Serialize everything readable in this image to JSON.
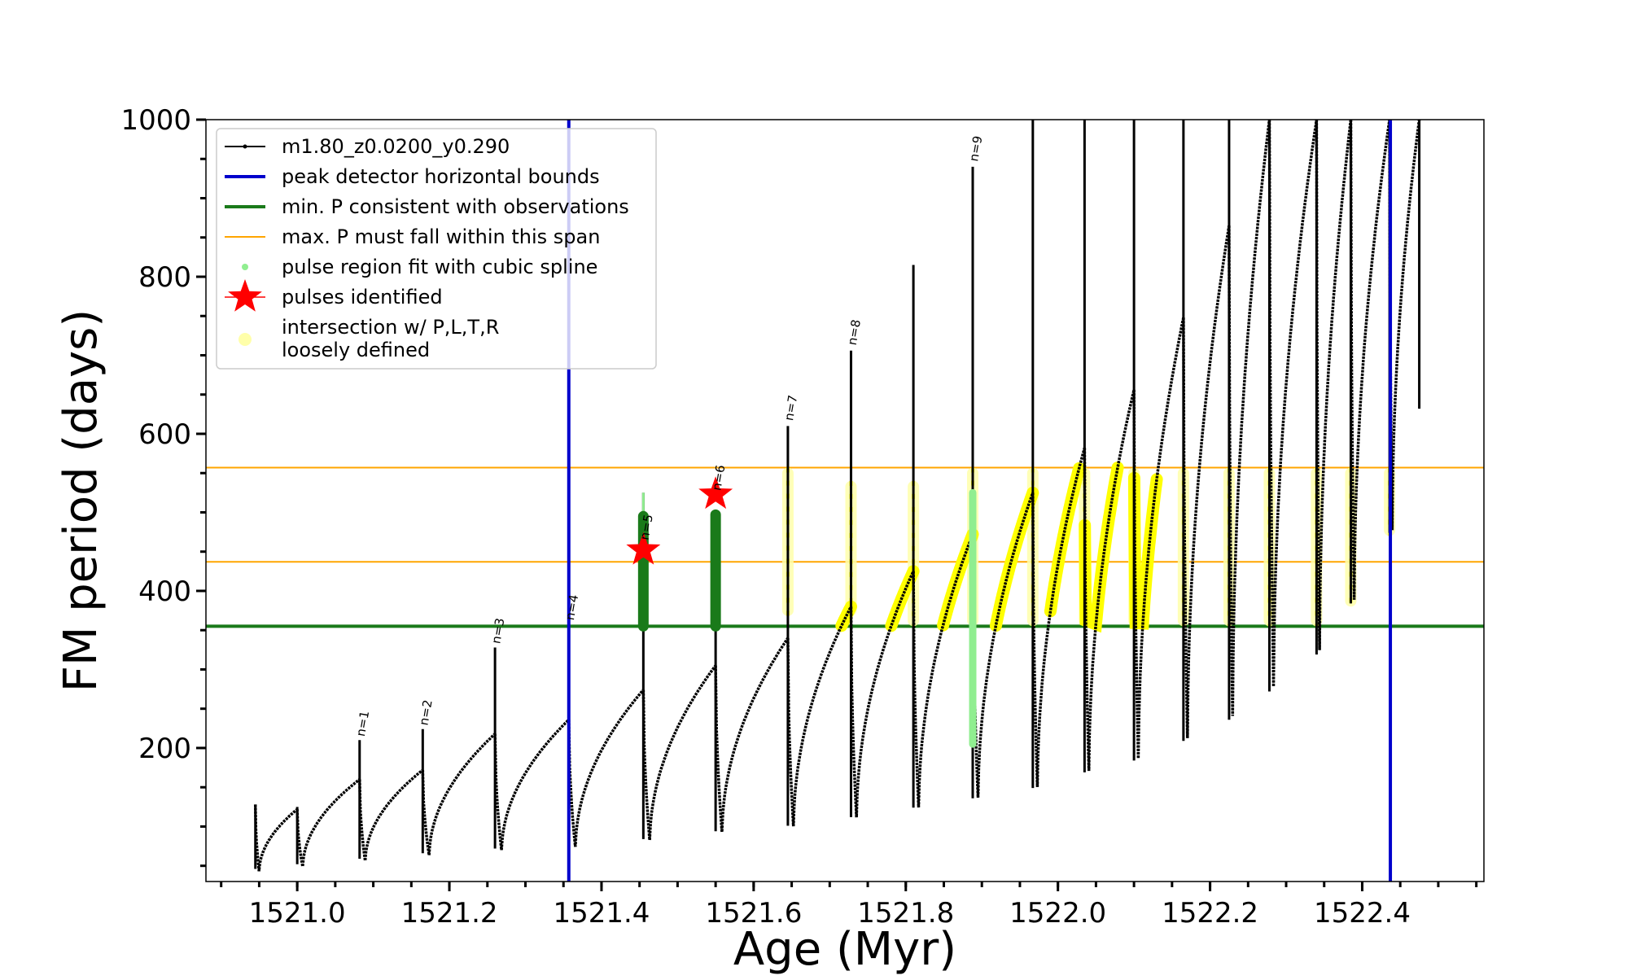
{
  "chart_data": {
    "type": "line",
    "xlabel": "Age (Myr)",
    "ylabel": "FM period (days)",
    "xlim": [
      1520.88,
      1522.56
    ],
    "ylim": [
      30,
      1000
    ],
    "x_ticks": [
      {
        "value": 1521.0,
        "label": "1521.0"
      },
      {
        "value": 1521.2,
        "label": "1521.2"
      },
      {
        "value": 1521.4,
        "label": "1521.4"
      },
      {
        "value": 1521.6,
        "label": "1521.6"
      },
      {
        "value": 1521.8,
        "label": "1521.8"
      },
      {
        "value": 1522.0,
        "label": "1522.0"
      },
      {
        "value": 1522.2,
        "label": "1522.2"
      },
      {
        "value": 1522.4,
        "label": "1522.4"
      }
    ],
    "y_ticks": [
      {
        "value": 200,
        "label": "200"
      },
      {
        "value": 400,
        "label": "400"
      },
      {
        "value": 600,
        "label": "600"
      },
      {
        "value": 800,
        "label": "800"
      },
      {
        "value": 1000,
        "label": "1000"
      }
    ],
    "legend": {
      "position": "top-left",
      "entries": [
        {
          "label": "m1.80_z0.0200_y0.290",
          "marker": "line-dot",
          "color": "#000000"
        },
        {
          "label": "peak detector horizontal bounds",
          "marker": "line",
          "color": "#0000cc"
        },
        {
          "label": "min. P consistent with observations",
          "marker": "line",
          "color": "#1a7a1a"
        },
        {
          "label": "max. P must fall within this span",
          "marker": "thin-line",
          "color": "#ffa500"
        },
        {
          "label": "pulse region fit with cubic spline",
          "marker": "dot",
          "color": "#90ee90"
        },
        {
          "label": "pulses identified",
          "marker": "star",
          "color": "#ff0000"
        },
        {
          "label": "intersection w/ P,L,T,R",
          "label2": "loosely defined",
          "marker": "circle",
          "color": "#ffffaa"
        }
      ]
    },
    "vertical_lines": [
      {
        "name": "peak detector horizontal bounds",
        "x": 1521.357,
        "color": "#0000cc"
      },
      {
        "name": "peak detector horizontal bounds",
        "x": 1522.437,
        "color": "#0000cc"
      }
    ],
    "horizontal_lines": [
      {
        "name": "min. P consistent with observations",
        "y": 355,
        "color": "#1a7a1a"
      },
      {
        "name": "max. P must fall within this span",
        "y": 437,
        "color": "#ffa500"
      },
      {
        "name": "max. P must fall within this span",
        "y": 557,
        "color": "#ffa500"
      }
    ],
    "cycles": [
      {
        "start": 1520.945,
        "end": 1521.0,
        "p_start": 128,
        "p_min": 42,
        "p_end": 122,
        "spike": 128
      },
      {
        "start": 1521.0,
        "end": 1521.082,
        "p_start": 122,
        "p_min": 48,
        "p_end": 160,
        "spike": 125
      },
      {
        "start": 1521.082,
        "end": 1521.165,
        "p_start": 160,
        "p_min": 55,
        "p_end": 172,
        "spike": 210
      },
      {
        "start": 1521.165,
        "end": 1521.26,
        "p_start": 172,
        "p_min": 62,
        "p_end": 218,
        "spike": 224
      },
      {
        "start": 1521.26,
        "end": 1521.357,
        "p_start": 218,
        "p_min": 68,
        "p_end": 236,
        "spike": 328
      },
      {
        "start": 1521.357,
        "end": 1521.455,
        "p_start": 236,
        "p_min": 72,
        "p_end": 274,
        "spike": 240
      },
      {
        "start": 1521.455,
        "end": 1521.55,
        "p_start": 274,
        "p_min": 80,
        "p_end": 305,
        "spike": 525
      },
      {
        "start": 1521.55,
        "end": 1521.645,
        "p_start": 305,
        "p_min": 90,
        "p_end": 340,
        "spike": 500
      },
      {
        "start": 1521.645,
        "end": 1521.728,
        "p_start": 340,
        "p_min": 97,
        "p_end": 380,
        "spike": 610
      },
      {
        "start": 1521.728,
        "end": 1521.81,
        "p_start": 380,
        "p_min": 108,
        "p_end": 425,
        "spike": 706
      },
      {
        "start": 1521.81,
        "end": 1521.888,
        "p_start": 425,
        "p_min": 120,
        "p_end": 472,
        "spike": 815
      },
      {
        "start": 1521.888,
        "end": 1521.967,
        "p_start": 472,
        "p_min": 132,
        "p_end": 525,
        "spike": 940
      },
      {
        "start": 1521.967,
        "end": 1522.035,
        "p_start": 525,
        "p_min": 145,
        "p_end": 582,
        "spike": 1000
      },
      {
        "start": 1522.035,
        "end": 1522.1,
        "p_start": 582,
        "p_min": 165,
        "p_end": 656,
        "spike": 1000
      },
      {
        "start": 1522.1,
        "end": 1522.165,
        "p_start": 656,
        "p_min": 180,
        "p_end": 748,
        "spike": 1000
      },
      {
        "start": 1522.165,
        "end": 1522.225,
        "p_start": 748,
        "p_min": 205,
        "p_end": 865,
        "spike": 1000
      },
      {
        "start": 1522.225,
        "end": 1522.278,
        "p_start": 865,
        "p_min": 232,
        "p_end": 1000,
        "spike": 1000
      },
      {
        "start": 1522.278,
        "end": 1522.34,
        "p_start": 1000,
        "p_min": 268,
        "p_end": 1000,
        "spike": 1000
      },
      {
        "start": 1522.34,
        "end": 1522.385,
        "p_start": 1000,
        "p_min": 315,
        "p_end": 1000,
        "spike": 1000
      },
      {
        "start": 1522.385,
        "end": 1522.436,
        "p_start": 1000,
        "p_min": 380,
        "p_end": 1000,
        "spike": 1000
      },
      {
        "start": 1522.436,
        "end": 1522.475,
        "p_start": 1000,
        "p_min": 470,
        "p_end": 1000,
        "spike": 1000
      }
    ],
    "tail": {
      "x": 1522.475,
      "p_start": 1000,
      "p_end": 632
    },
    "pulse_labels": [
      {
        "label": "n=1",
        "x": 1521.082,
        "y": 212
      },
      {
        "label": "n=2",
        "x": 1521.165,
        "y": 226
      },
      {
        "label": "n=3",
        "x": 1521.26,
        "y": 330
      },
      {
        "label": "n=4",
        "x": 1521.357,
        "y": 360
      },
      {
        "label": "n=5",
        "x": 1521.455,
        "y": 462
      },
      {
        "label": "n=6",
        "x": 1521.55,
        "y": 525
      },
      {
        "label": "n=7",
        "x": 1521.645,
        "y": 614
      },
      {
        "label": "n=8",
        "x": 1521.728,
        "y": 710
      },
      {
        "label": "n=9",
        "x": 1521.888,
        "y": 944
      }
    ],
    "pulses_identified": [
      {
        "x": 1521.455,
        "y": 452
      },
      {
        "x": 1521.55,
        "y": 523
      }
    ],
    "green_fits": [
      {
        "x": 1521.455,
        "y_min": 355,
        "y_max": 495,
        "spike": 525
      },
      {
        "x": 1521.55,
        "y_min": 355,
        "y_max": 497,
        "spike": 500
      }
    ],
    "lightgreen_fit": {
      "x": 1521.888,
      "y_min": 205,
      "y_max": 525
    },
    "yellow_columns": [
      {
        "x": 1521.645,
        "y_min": 368,
        "y_max": 557
      },
      {
        "x": 1521.728,
        "y_min": 368,
        "y_max": 540
      },
      {
        "x": 1521.81,
        "y_min": 355,
        "y_max": 540
      },
      {
        "x": 1521.888,
        "y_min": 355,
        "y_max": 557
      },
      {
        "x": 1521.967,
        "y_min": 355,
        "y_max": 557
      },
      {
        "x": 1522.035,
        "y_min": 355,
        "y_max": 557
      },
      {
        "x": 1522.1,
        "y_min": 355,
        "y_max": 557
      },
      {
        "x": 1522.165,
        "y_min": 355,
        "y_max": 557
      },
      {
        "x": 1522.225,
        "y_min": 355,
        "y_max": 557
      },
      {
        "x": 1522.278,
        "y_min": 355,
        "y_max": 557
      },
      {
        "x": 1522.34,
        "y_min": 355,
        "y_max": 557
      },
      {
        "x": 1522.385,
        "y_min": 380,
        "y_max": 557
      },
      {
        "x": 1522.436,
        "y_min": 470,
        "y_max": 557
      }
    ],
    "yellow_segments": [
      {
        "x0": 1521.7,
        "x1": 1521.728
      },
      {
        "x0": 1521.767,
        "x1": 1521.81
      },
      {
        "x0": 1521.842,
        "x1": 1521.888
      },
      {
        "x0": 1521.918,
        "x1": 1521.967
      },
      {
        "x0": 1521.99,
        "x1": 1522.035
      },
      {
        "x0": 1522.035,
        "x1": 1522.1
      },
      {
        "x0": 1522.1,
        "x1": 1522.13
      }
    ],
    "colors": {
      "track": "#000000",
      "blue": "#0000cc",
      "green": "#1a7a1a",
      "orange": "#ffa500",
      "lightgreen": "#90ee90",
      "star": "#ff0000",
      "yellow": "#ffff00",
      "paleyellow": "#ffffaa"
    }
  }
}
